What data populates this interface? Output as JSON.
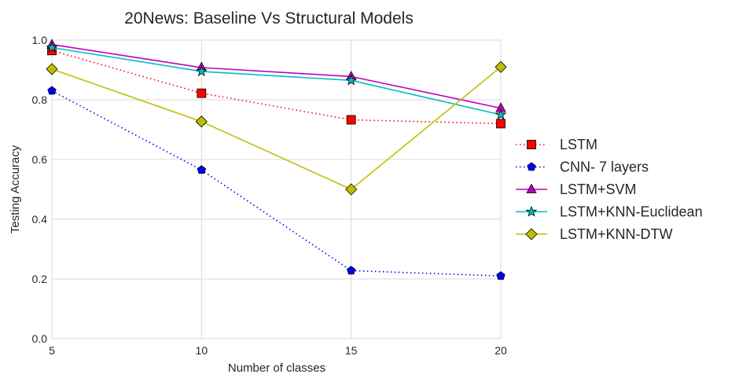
{
  "chart_data": {
    "type": "line",
    "title": "20News: Baseline Vs Structural Models",
    "xlabel": "Number of classes",
    "ylabel": "Testing Accuracy",
    "x": [
      5,
      10,
      15,
      20
    ],
    "xlim": [
      5,
      20
    ],
    "ylim": [
      0.0,
      1.0
    ],
    "xticks": [
      "5",
      "10",
      "15",
      "20"
    ],
    "yticks": [
      "0.0",
      "0.2",
      "0.4",
      "0.6",
      "0.8",
      "1.0"
    ],
    "grid": true,
    "legend_position": "right",
    "series": [
      {
        "name": "LSTM",
        "values": [
          0.965,
          0.822,
          0.733,
          0.72
        ],
        "color": "#ff0000",
        "dash": "dotted",
        "marker": "square"
      },
      {
        "name": "CNN- 7 layers",
        "values": [
          0.83,
          0.565,
          0.228,
          0.21
        ],
        "color": "#0000ff",
        "dash": "dotted",
        "marker": "pentagon"
      },
      {
        "name": "LSTM+SVM",
        "values": [
          0.985,
          0.908,
          0.878,
          0.772
        ],
        "color": "#bf00bf",
        "dash": "solid",
        "marker": "triangle"
      },
      {
        "name": "LSTM+KNN-Euclidean",
        "values": [
          0.975,
          0.895,
          0.865,
          0.75
        ],
        "color": "#00bfbf",
        "dash": "solid",
        "marker": "star"
      },
      {
        "name": "LSTM+KNN-DTW",
        "values": [
          0.903,
          0.727,
          0.5,
          0.91
        ],
        "color": "#bfbf00",
        "dash": "solid",
        "marker": "diamond"
      }
    ]
  }
}
